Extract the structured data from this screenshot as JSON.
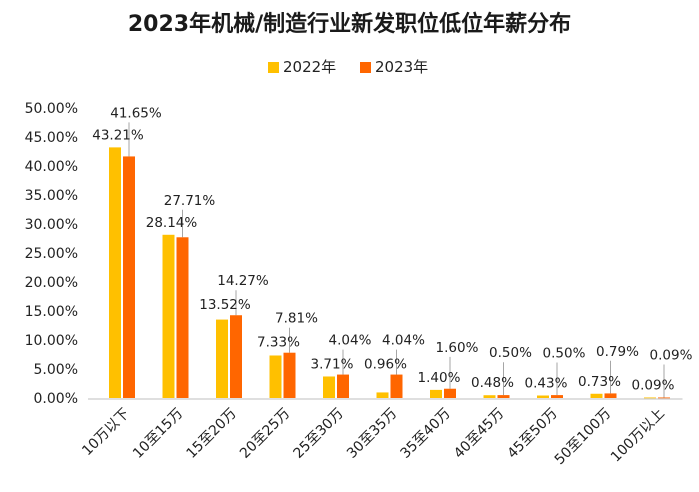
{
  "chart_data": {
    "type": "bar",
    "title": "2023年机械/制造行业新发职位低位年薪分布",
    "categories": [
      "10万以下",
      "10至15万",
      "15至20万",
      "20至25万",
      "25至30万",
      "30至35万",
      "35至40万",
      "40至45万",
      "45至50万",
      "50至100万",
      "100万以上"
    ],
    "series": [
      {
        "name": "2022年",
        "color": "#FFC000",
        "values": [
          43.21,
          28.14,
          13.52,
          7.33,
          3.71,
          0.96,
          1.4,
          0.48,
          0.43,
          0.73,
          0.09
        ],
        "labels": [
          "43.21%",
          "28.14%",
          "13.52%",
          "7.33%",
          "3.71%",
          "0.96%",
          "1.40%",
          "0.48%",
          "0.43%",
          "0.73%",
          "0.09%"
        ]
      },
      {
        "name": "2023年",
        "color": "#FF6600",
        "values": [
          41.65,
          27.71,
          14.27,
          7.81,
          4.04,
          4.04,
          1.6,
          0.5,
          0.5,
          0.79,
          0.09
        ],
        "labels": [
          "41.65%",
          "27.71%",
          "14.27%",
          "7.81%",
          "4.04%",
          "4.04%",
          "1.60%",
          "0.50%",
          "0.50%",
          "0.79%",
          "0.09%"
        ]
      }
    ],
    "yticks": [
      "0.00%",
      "5.00%",
      "10.00%",
      "15.00%",
      "20.00%",
      "25.00%",
      "30.00%",
      "35.00%",
      "40.00%",
      "45.00%",
      "50.00%"
    ],
    "ylim": [
      0,
      50
    ],
    "legend_position": "top",
    "grid": false
  }
}
